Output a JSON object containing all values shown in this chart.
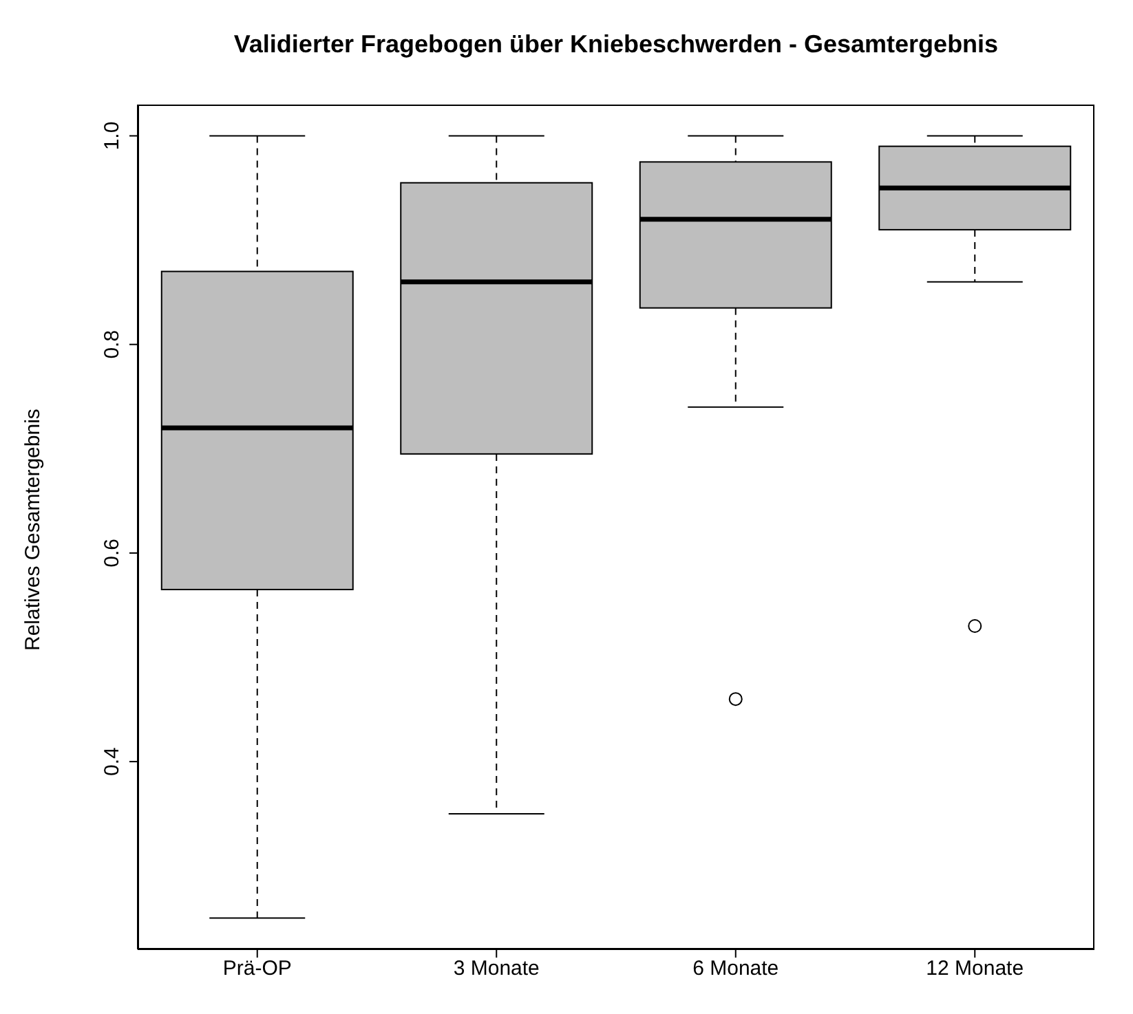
{
  "chart_data": {
    "type": "box",
    "title": "Validierter Fragebogen über Kniebeschwerden - Gesamtergebnis",
    "ylabel": "Relatives Gesamtergebnis",
    "categories": [
      "Prä-OP",
      "3 Monate",
      "6 Monate",
      "12 Monate"
    ],
    "series": [
      {
        "color": "#bebebe",
        "boxes": [
          {
            "low": 0.25,
            "q1": 0.565,
            "median": 0.72,
            "q3": 0.87,
            "high": 1.0
          },
          {
            "low": 0.35,
            "q1": 0.695,
            "median": 0.86,
            "q3": 0.955,
            "high": 1.0
          },
          {
            "low": 0.74,
            "q1": 0.835,
            "median": 0.92,
            "q3": 0.975,
            "high": 1.0,
            "outliers": [
              0.46
            ]
          },
          {
            "low": 0.86,
            "q1": 0.91,
            "median": 0.95,
            "q3": 0.99,
            "high": 1.0,
            "outliers": [
              0.53
            ]
          }
        ]
      }
    ],
    "ylim": [
      0.22,
      1.03
    ],
    "yticks": [
      0.4,
      0.6,
      0.8,
      {
        "value": 1,
        "label": "1.0"
      }
    ],
    "grid": false,
    "legend": false
  }
}
